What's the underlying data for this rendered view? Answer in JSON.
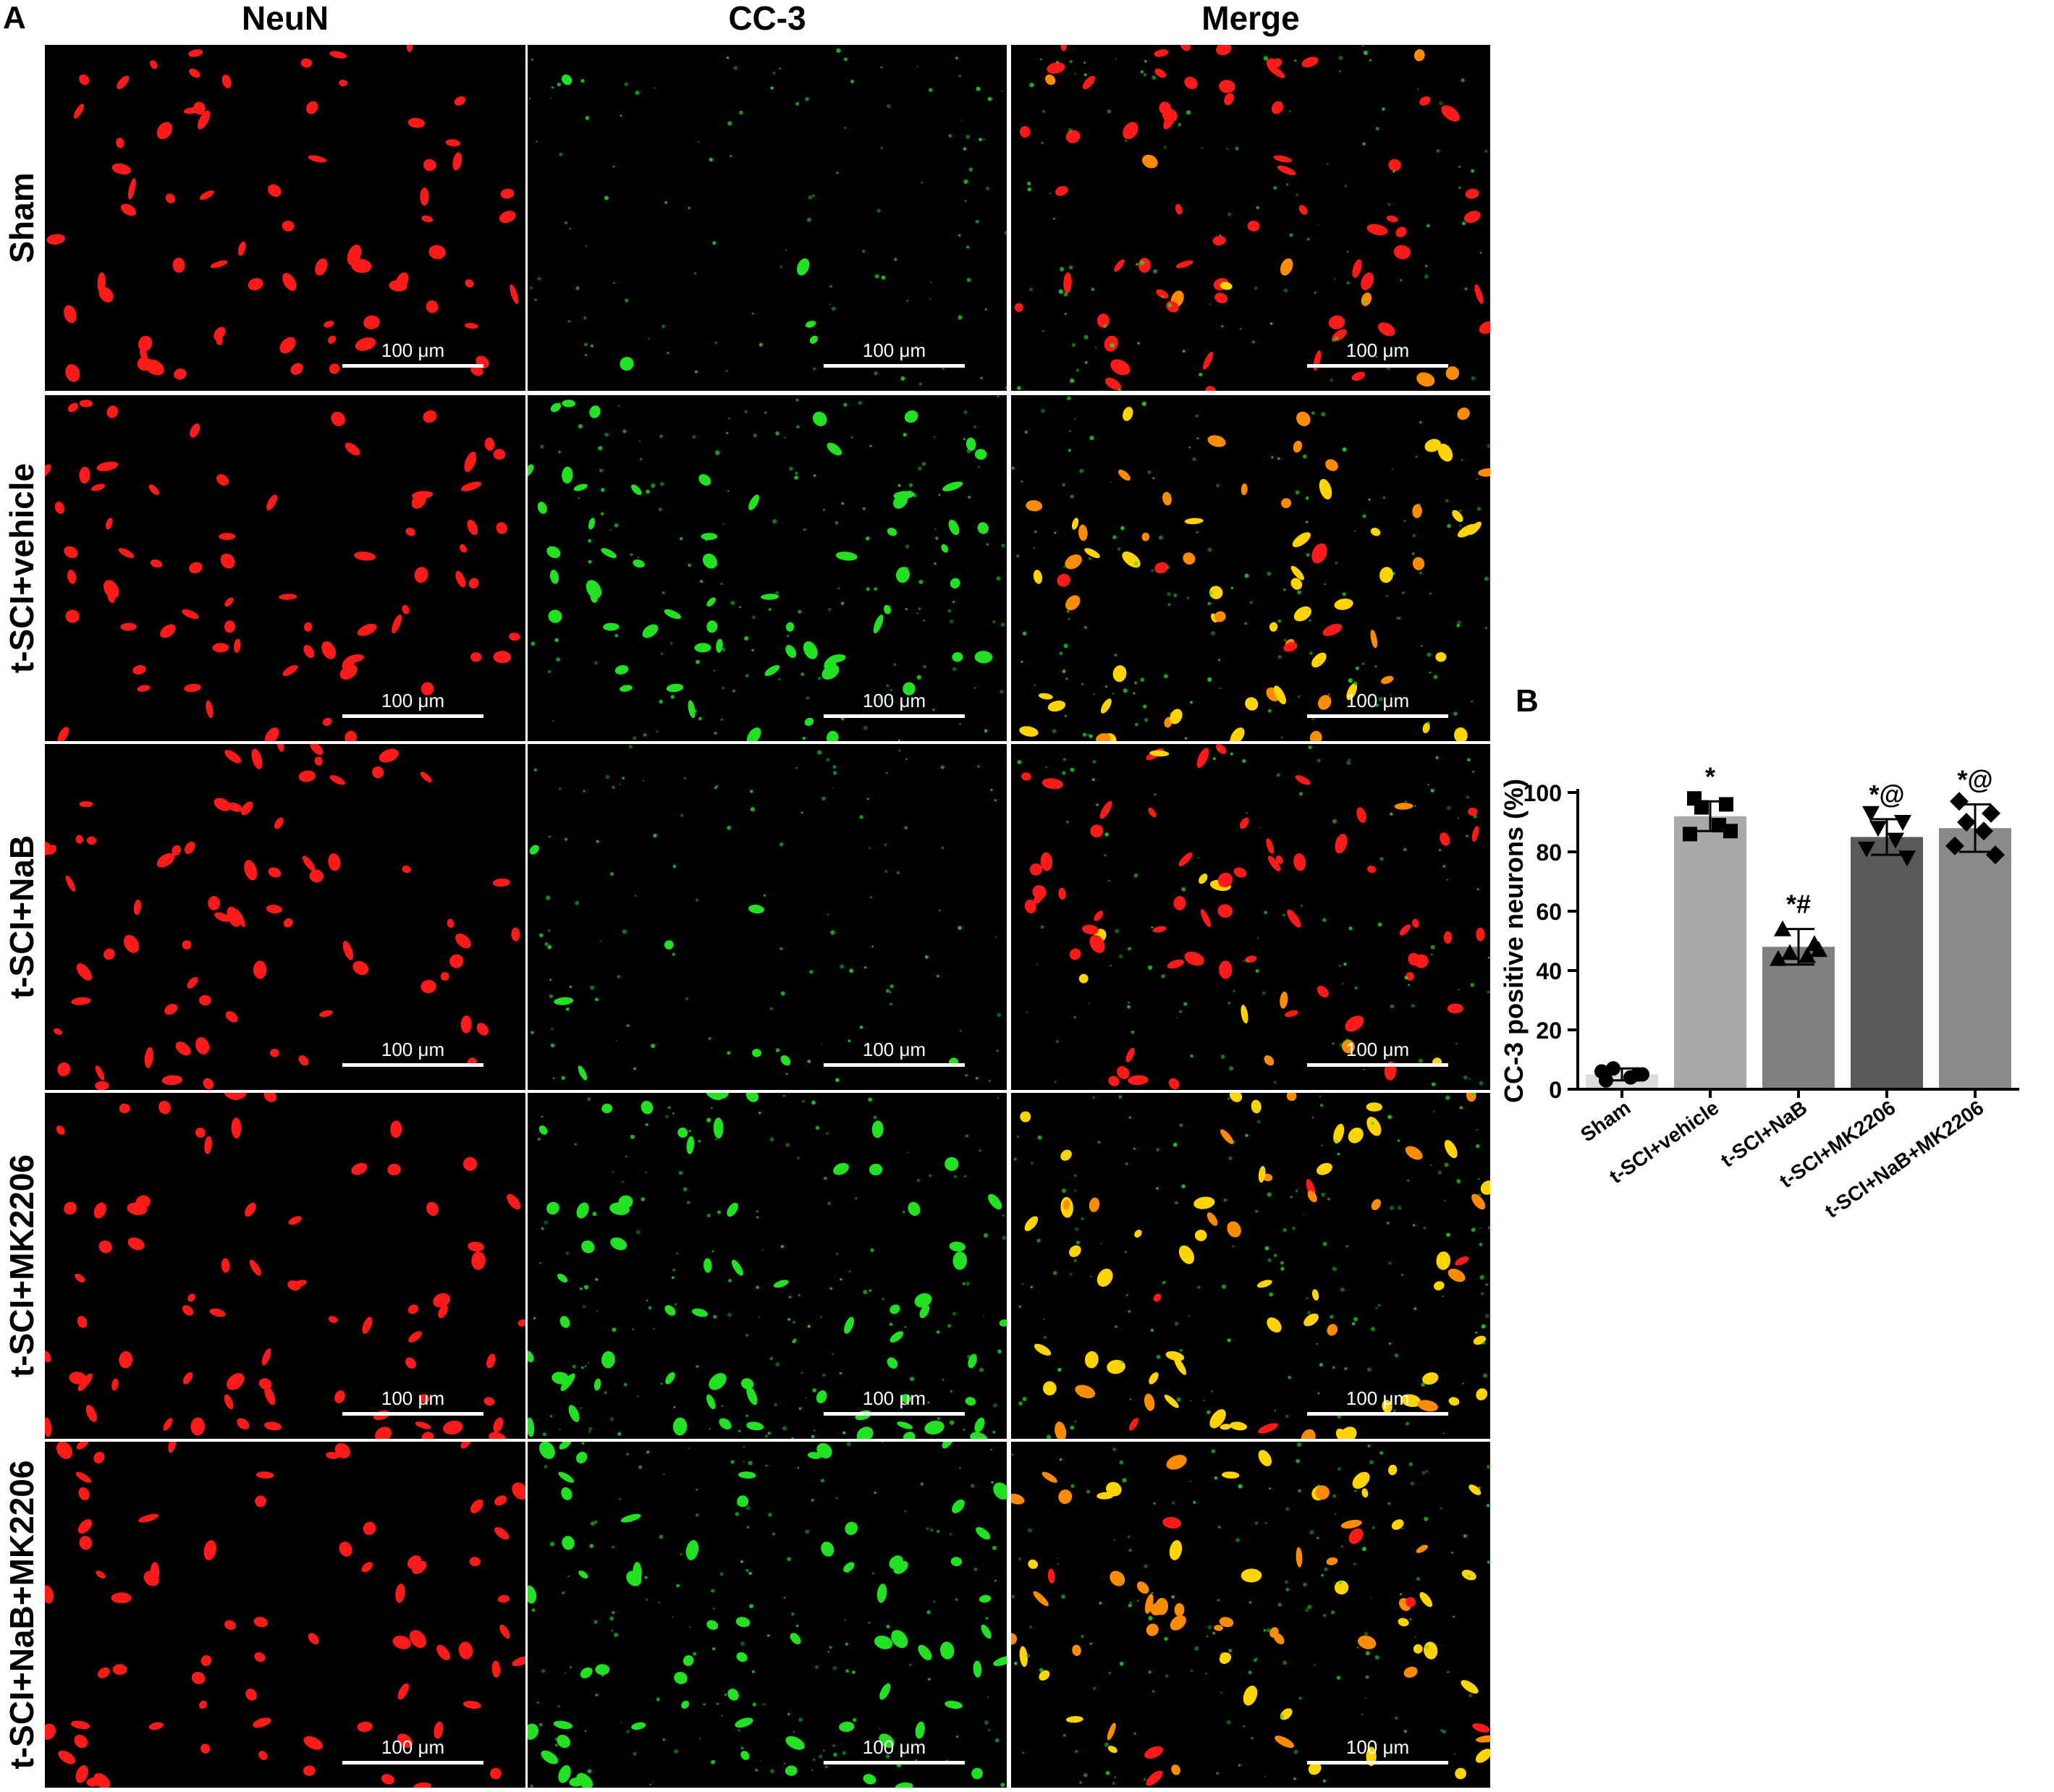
{
  "panel_a": {
    "letter": "A",
    "columns": [
      "NeuN",
      "CC-3",
      "Merge"
    ],
    "rows": [
      "Sham",
      "t-SCI+vehicle",
      "t-SCI+NaB",
      "t-SCI+MK2206",
      "t-SCI+NaB+MK2206"
    ],
    "scale_bar_label": "100 μm",
    "colors": {
      "neun": "#ff1a1a",
      "cc3": "#22e022",
      "merge": "#ffd400"
    }
  },
  "panel_b": {
    "letter": "B"
  },
  "chart_data": {
    "type": "bar",
    "title": "",
    "xlabel": "",
    "ylabel": "CC-3 positive neurons (%)",
    "ylim": [
      0,
      100
    ],
    "yticks": [
      0,
      20,
      40,
      60,
      80,
      100
    ],
    "categories": [
      "Sham",
      "t-SCI+vehicle",
      "t-SCI+NaB",
      "t-SCI+MK2206",
      "t-SCI+NaB+MK2206"
    ],
    "values": [
      5,
      92,
      48,
      85,
      88
    ],
    "errors": [
      2,
      5,
      6,
      6,
      8
    ],
    "annotations": [
      "",
      "*",
      "*#",
      "*@",
      "*@"
    ],
    "bar_colors": [
      "#dcdcdc",
      "#a9a9a9",
      "#808080",
      "#5a5a5a",
      "#8a8a8a"
    ],
    "points": [
      [
        3,
        5,
        7,
        4,
        6,
        5
      ],
      [
        98,
        96,
        95,
        89,
        86,
        87
      ],
      [
        54,
        49,
        46,
        45,
        44,
        47
      ],
      [
        93,
        90,
        88,
        84,
        81,
        78
      ],
      [
        97,
        93,
        90,
        87,
        82,
        79
      ]
    ],
    "markers": [
      "circle",
      "square",
      "triangle-up",
      "triangle-down",
      "diamond"
    ]
  }
}
